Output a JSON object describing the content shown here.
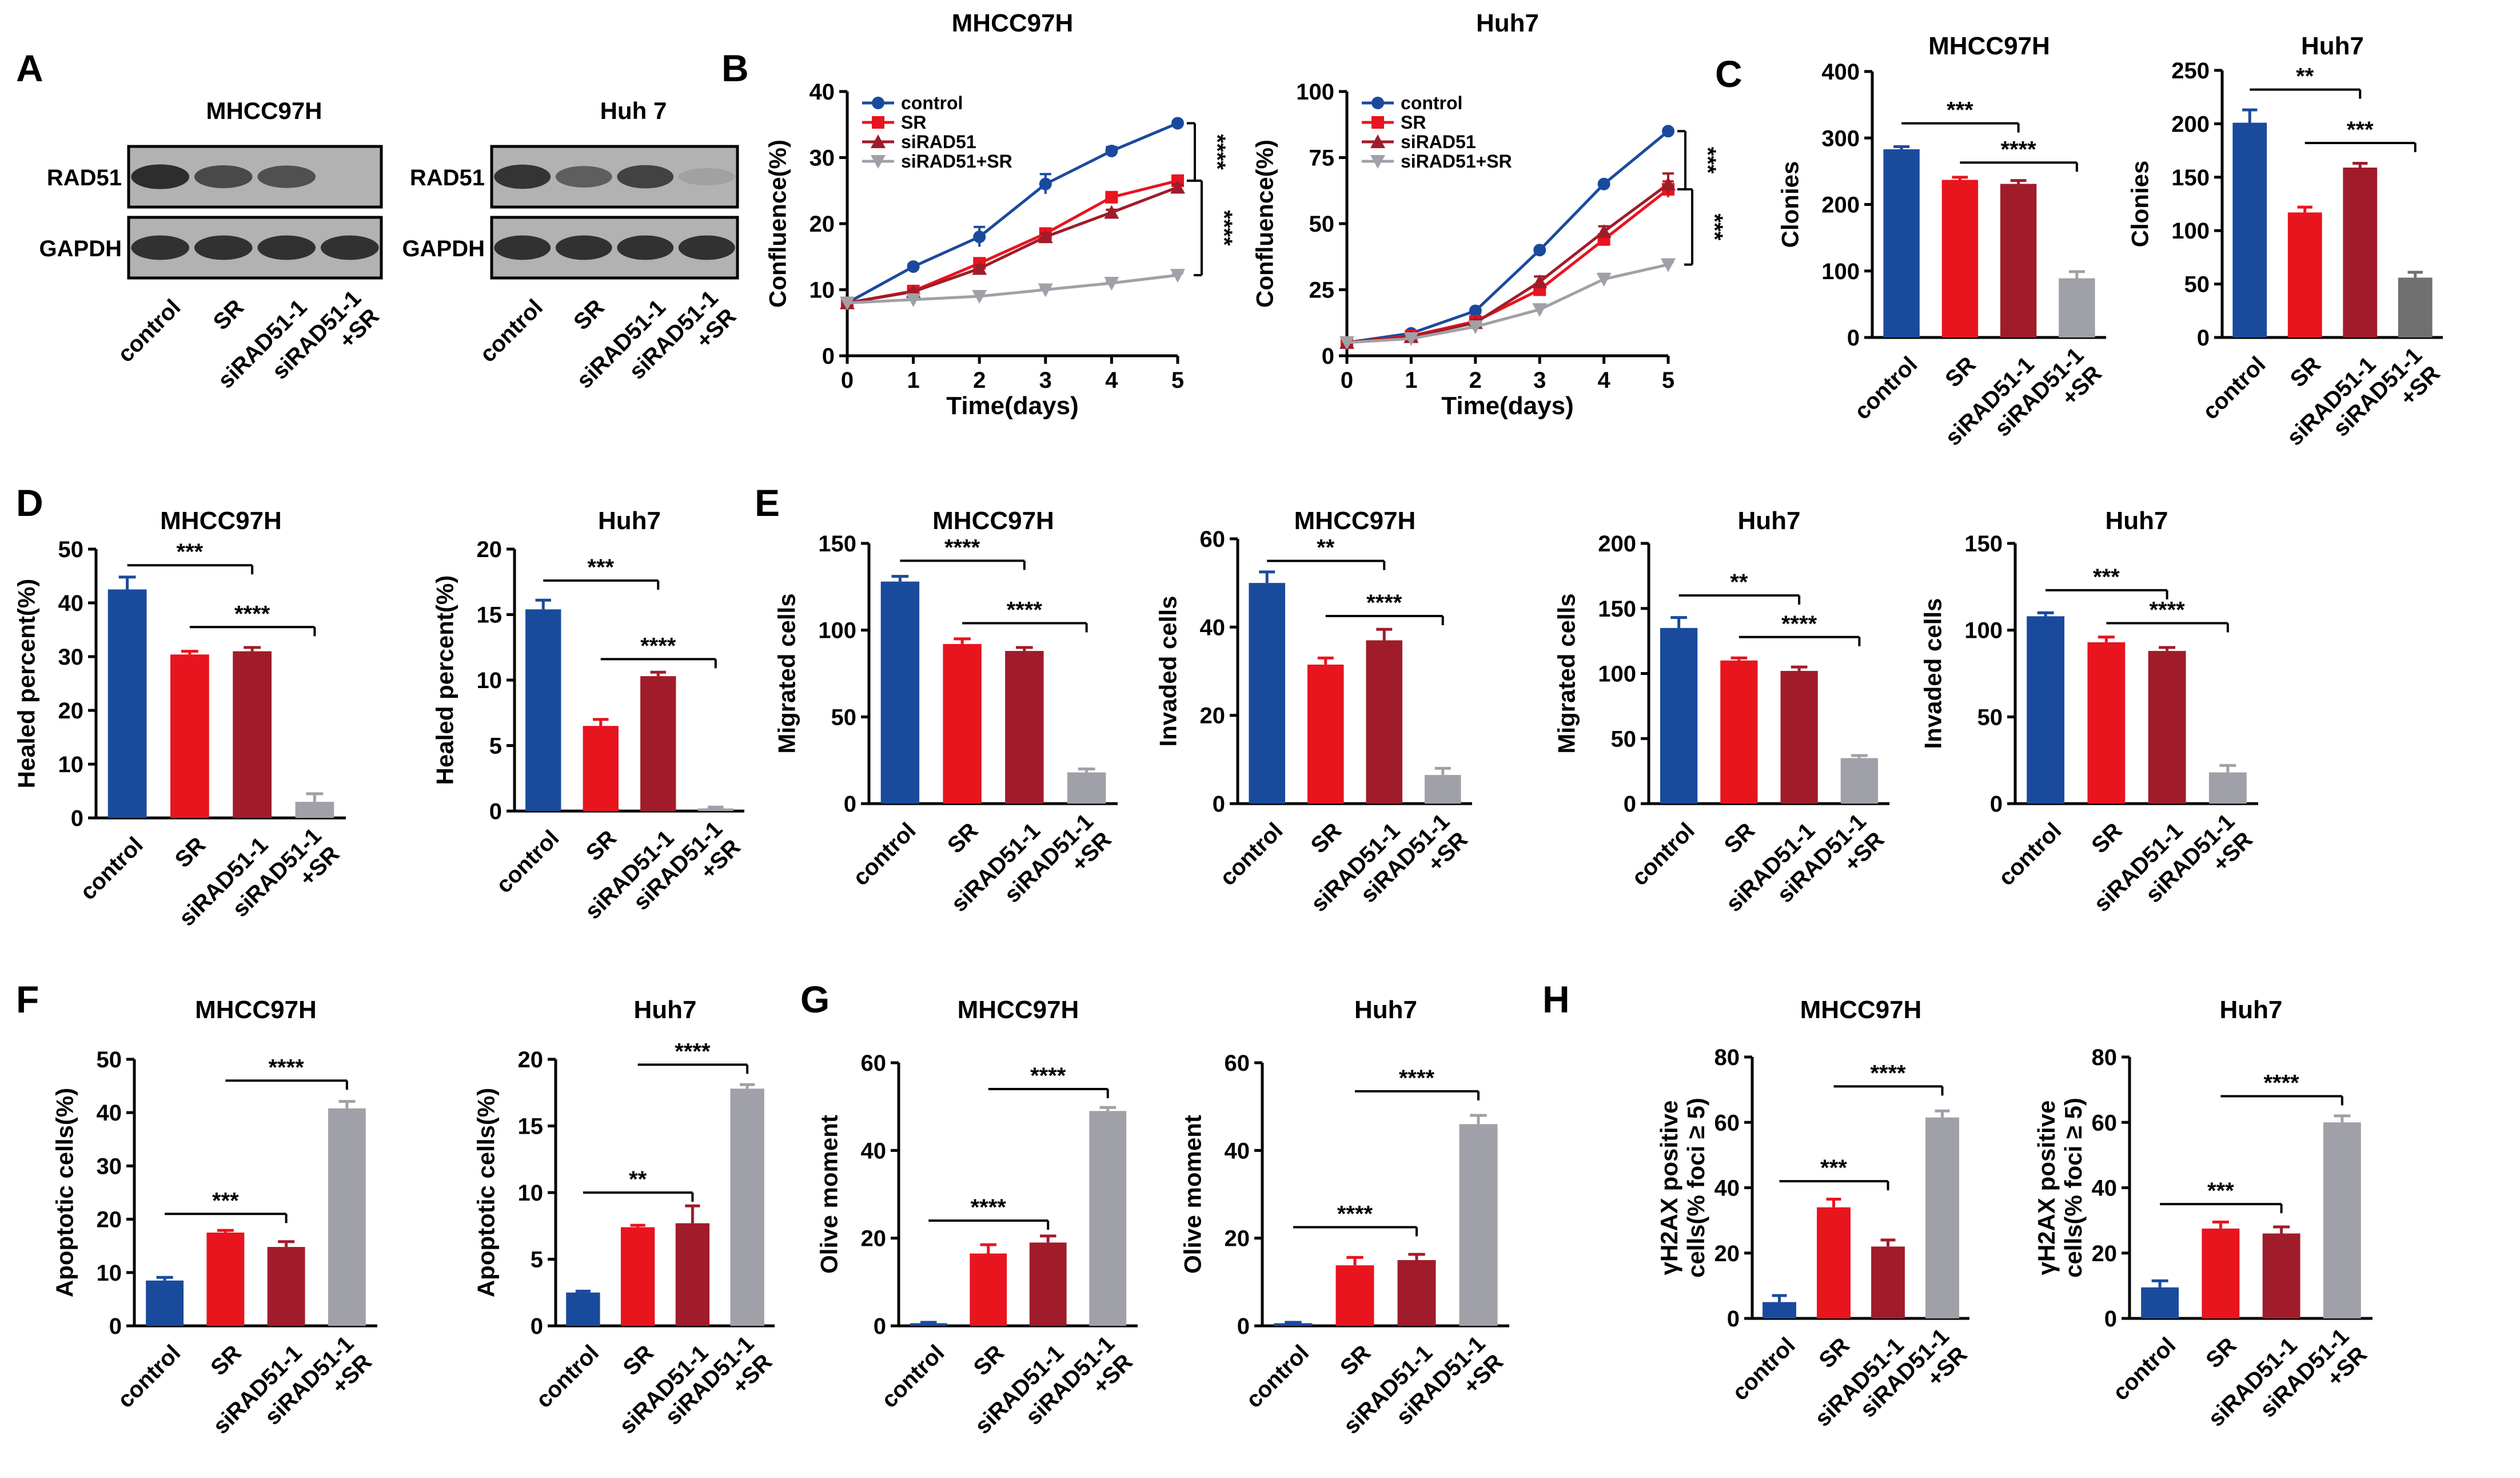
{
  "figure": {
    "panel_letters": [
      "A",
      "B",
      "C",
      "D",
      "E",
      "F",
      "G",
      "H"
    ],
    "colors": {
      "control": "#1a4a9c",
      "SR": "#e8141e",
      "siRAD51": "#a01c2a",
      "combo": "#a0a0a8",
      "comboDark": "#707070",
      "axis": "#000000",
      "blotBg": "#b2b2b2",
      "band": "#262626"
    },
    "western": {
      "blots": [
        {
          "title": "MHCC97H",
          "rows": [
            {
              "label": "RAD51",
              "intensity": [
                0.95,
                0.75,
                0.7,
                0.0
              ]
            },
            {
              "label": "GAPDH",
              "intensity": [
                0.92,
                0.92,
                0.92,
                0.92
              ]
            }
          ]
        },
        {
          "title": "Huh 7",
          "rows": [
            {
              "label": "RAD51",
              "intensity": [
                0.9,
                0.6,
                0.8,
                0.12
              ]
            },
            {
              "label": "GAPDH",
              "intensity": [
                0.92,
                0.92,
                0.92,
                0.92
              ]
            }
          ]
        }
      ],
      "lane_labels": [
        "control",
        "SR",
        "siRAD51-1",
        "siRAD51-1\n+SR"
      ]
    }
  },
  "chart_data": [
    {
      "id": "B1",
      "type": "line",
      "title": "MHCC97H",
      "xlabel": "Time(days)",
      "ylabel": "Confluence(%)",
      "xlim": [
        0,
        5
      ],
      "ylim": [
        0,
        40
      ],
      "xticks": [
        0,
        1,
        2,
        3,
        4,
        5
      ],
      "yticks": [
        0,
        10,
        20,
        30,
        40
      ],
      "series": [
        {
          "name": "control",
          "color": "#1a4a9c",
          "marker": "circle",
          "x": [
            0,
            1,
            2,
            3,
            4,
            5
          ],
          "y": [
            8,
            13.5,
            18,
            26,
            31,
            35.2
          ],
          "err": [
            0,
            0.4,
            1.5,
            1.5,
            0.6,
            0.3
          ]
        },
        {
          "name": "SR",
          "color": "#e8141e",
          "marker": "square",
          "x": [
            0,
            1,
            2,
            3,
            4,
            5
          ],
          "y": [
            8,
            9.8,
            14,
            18.5,
            24,
            26.5
          ],
          "err": [
            0,
            0.3,
            0.5,
            0.5,
            0.4,
            0.6
          ]
        },
        {
          "name": "siRAD51",
          "color": "#a01c2a",
          "marker": "triangle",
          "x": [
            0,
            1,
            2,
            3,
            4,
            5
          ],
          "y": [
            8,
            9.7,
            13.2,
            18,
            21.7,
            25.5
          ],
          "err": [
            0,
            0.3,
            0.5,
            0.5,
            0.4,
            0.4
          ]
        },
        {
          "name": "siRAD51+SR",
          "color": "#a0a0a8",
          "marker": "triangle-down",
          "x": [
            0,
            1,
            2,
            3,
            4,
            5
          ],
          "y": [
            8,
            8.5,
            9,
            10,
            11,
            12.2
          ],
          "err": [
            0,
            0.3,
            0.6,
            0.3,
            0.3,
            0.3
          ]
        }
      ],
      "significance": [
        {
          "label": "****",
          "from": "control",
          "to": "SR"
        },
        {
          "label": "****",
          "from": "SR",
          "to": "siRAD51+SR"
        }
      ]
    },
    {
      "id": "B2",
      "type": "line",
      "title": "Huh7",
      "xlabel": "Time(days)",
      "ylabel": "Confluence(%)",
      "xlim": [
        0,
        5
      ],
      "ylim": [
        0,
        100
      ],
      "xticks": [
        0,
        1,
        2,
        3,
        4,
        5
      ],
      "yticks": [
        0,
        25,
        50,
        75,
        100
      ],
      "series": [
        {
          "name": "control",
          "color": "#1a4a9c",
          "marker": "circle",
          "x": [
            0,
            1,
            2,
            3,
            4,
            5
          ],
          "y": [
            5,
            8.5,
            17,
            40,
            65,
            85
          ],
          "err": [
            0,
            0.5,
            0.5,
            0.6,
            0.6,
            0.6
          ]
        },
        {
          "name": "SR",
          "color": "#e8141e",
          "marker": "square",
          "x": [
            0,
            1,
            2,
            3,
            4,
            5
          ],
          "y": [
            5,
            7.5,
            13,
            25,
            44,
            63
          ],
          "err": [
            0,
            0.5,
            1,
            2,
            2,
            3
          ]
        },
        {
          "name": "siRAD51",
          "color": "#a01c2a",
          "marker": "triangle",
          "x": [
            0,
            1,
            2,
            3,
            4,
            5
          ],
          "y": [
            5,
            7.2,
            12.5,
            28,
            47,
            65
          ],
          "err": [
            0,
            0.5,
            1,
            2,
            2,
            4
          ]
        },
        {
          "name": "siRAD51+SR",
          "color": "#a0a0a8",
          "marker": "triangle-down",
          "x": [
            0,
            1,
            2,
            3,
            4,
            5
          ],
          "y": [
            5,
            6.5,
            11,
            17.5,
            29,
            34.5
          ],
          "err": [
            0,
            0.5,
            1,
            1.5,
            2,
            1
          ]
        }
      ],
      "significance": [
        {
          "label": "***",
          "from": "control",
          "to": "SR"
        },
        {
          "label": "***",
          "from": "SR",
          "to": "siRAD51+SR"
        }
      ]
    },
    {
      "id": "C1",
      "type": "bar",
      "title": "MHCC97H",
      "ylabel": "Clonies",
      "ylim": [
        0,
        400
      ],
      "yticks": [
        0,
        100,
        200,
        300,
        400
      ],
      "categories": [
        "control",
        "SR",
        "siRAD51-1",
        "siRAD51-1\n+SR"
      ],
      "values": [
        283,
        237,
        231,
        89
      ],
      "errors": [
        4,
        4,
        5,
        10
      ],
      "colors": [
        "#1a4a9c",
        "#e8141e",
        "#a01c2a",
        "#a0a0a8"
      ],
      "significance": [
        {
          "label": "***",
          "from": 0,
          "to": 2,
          "y": 322
        },
        {
          "label": "****",
          "from": 1,
          "to": 3,
          "y": 263
        }
      ]
    },
    {
      "id": "C2",
      "type": "bar",
      "title": "Huh7",
      "ylabel": "Clonies",
      "ylim": [
        0,
        250
      ],
      "yticks": [
        0,
        50,
        100,
        150,
        200,
        250
      ],
      "categories": [
        "control",
        "SR",
        "siRAD51-1",
        "siRAD51-1\n+SR"
      ],
      "values": [
        201,
        117,
        159,
        56
      ],
      "errors": [
        12,
        5,
        4,
        5
      ],
      "colors": [
        "#1a4a9c",
        "#e8141e",
        "#a01c2a",
        "#707070"
      ],
      "significance": [
        {
          "label": "**",
          "from": 0,
          "to": 2,
          "y": 232
        },
        {
          "label": "***",
          "from": 1,
          "to": 3,
          "y": 182
        }
      ]
    },
    {
      "id": "D1",
      "type": "bar",
      "title": "MHCC97H",
      "ylabel": "Healed percent(%)",
      "ylim": [
        0,
        50
      ],
      "yticks": [
        0,
        10,
        20,
        30,
        40,
        50
      ],
      "categories": [
        "control",
        "SR",
        "siRAD51-1",
        "siRAD51-1\n+SR"
      ],
      "values": [
        42.5,
        30.4,
        31,
        3
      ],
      "errors": [
        2.3,
        0.6,
        0.7,
        1.5
      ],
      "colors": [
        "#1a4a9c",
        "#e8141e",
        "#a01c2a",
        "#a0a0a8"
      ],
      "significance": [
        {
          "label": "***",
          "from": 0,
          "to": 2,
          "y": 47
        },
        {
          "label": "****",
          "from": 1,
          "to": 3,
          "y": 35.5
        }
      ]
    },
    {
      "id": "D2",
      "type": "bar",
      "title": "Huh7",
      "ylabel": "Healed percent(%)",
      "ylim": [
        0,
        20
      ],
      "yticks": [
        0,
        5,
        10,
        15,
        20
      ],
      "categories": [
        "control",
        "SR",
        "siRAD51-1",
        "siRAD51-1\n+SR"
      ],
      "values": [
        15.4,
        6.5,
        10.3,
        0.2
      ],
      "errors": [
        0.7,
        0.5,
        0.3,
        0.1
      ],
      "colors": [
        "#1a4a9c",
        "#e8141e",
        "#a01c2a",
        "#a0a0a8"
      ],
      "significance": [
        {
          "label": "***",
          "from": 0,
          "to": 2,
          "y": 17.6
        },
        {
          "label": "****",
          "from": 1,
          "to": 3,
          "y": 11.6
        }
      ]
    },
    {
      "id": "E1",
      "type": "bar",
      "title": "MHCC97H",
      "ylabel": "Migrated cells",
      "ylim": [
        0,
        150
      ],
      "yticks": [
        0,
        50,
        100,
        150
      ],
      "categories": [
        "control",
        "SR",
        "siRAD51-1",
        "siRAD51-1\n+SR"
      ],
      "values": [
        128,
        92,
        88,
        18
      ],
      "errors": [
        3,
        3,
        2,
        2
      ],
      "colors": [
        "#1a4a9c",
        "#e8141e",
        "#a01c2a",
        "#a0a0a8"
      ],
      "significance": [
        {
          "label": "****",
          "from": 0,
          "to": 2,
          "y": 140
        },
        {
          "label": "****",
          "from": 1,
          "to": 3,
          "y": 104
        }
      ]
    },
    {
      "id": "E2",
      "type": "bar",
      "title": "MHCC97H",
      "ylabel": "Invaded cells",
      "ylim": [
        0,
        60
      ],
      "yticks": [
        0,
        20,
        40,
        60
      ],
      "categories": [
        "control",
        "SR",
        "siRAD51-1",
        "siRAD51-1\n+SR"
      ],
      "values": [
        50,
        31.5,
        37,
        6.5
      ],
      "errors": [
        2.5,
        1.5,
        2.5,
        1.5
      ],
      "colors": [
        "#1a4a9c",
        "#e8141e",
        "#a01c2a",
        "#a0a0a8"
      ],
      "significance": [
        {
          "label": "**",
          "from": 0,
          "to": 2,
          "y": 55
        },
        {
          "label": "****",
          "from": 1,
          "to": 3,
          "y": 42.5
        }
      ]
    },
    {
      "id": "E3",
      "type": "bar",
      "title": "Huh7",
      "ylabel": "Migrated cells",
      "ylim": [
        0,
        200
      ],
      "yticks": [
        0,
        50,
        100,
        150,
        200
      ],
      "categories": [
        "control",
        "SR",
        "siRAD51-1",
        "siRAD51-1\n+SR"
      ],
      "values": [
        135,
        110,
        102,
        35
      ],
      "errors": [
        8,
        2,
        3,
        2
      ],
      "colors": [
        "#1a4a9c",
        "#e8141e",
        "#a01c2a",
        "#a0a0a8"
      ],
      "significance": [
        {
          "label": "**",
          "from": 0,
          "to": 2,
          "y": 160
        },
        {
          "label": "****",
          "from": 1,
          "to": 3,
          "y": 128
        }
      ]
    },
    {
      "id": "E4",
      "type": "bar",
      "title": "Huh7",
      "ylabel": "Invaded cells",
      "ylim": [
        0,
        150
      ],
      "yticks": [
        0,
        50,
        100,
        150
      ],
      "categories": [
        "control",
        "SR",
        "siRAD51-1",
        "siRAD51-1\n+SR"
      ],
      "values": [
        108,
        93,
        88,
        18
      ],
      "errors": [
        2,
        3,
        2,
        4
      ],
      "colors": [
        "#1a4a9c",
        "#e8141e",
        "#a01c2a",
        "#a0a0a8"
      ],
      "significance": [
        {
          "label": "***",
          "from": 0,
          "to": 2,
          "y": 123
        },
        {
          "label": "****",
          "from": 1,
          "to": 3,
          "y": 104
        }
      ]
    },
    {
      "id": "F1",
      "type": "bar",
      "title": "MHCC97H",
      "ylabel": "Apoptotic cells(%)",
      "ylim": [
        0,
        50
      ],
      "yticks": [
        0,
        10,
        20,
        30,
        40,
        50
      ],
      "categories": [
        "control",
        "SR",
        "siRAD51-1",
        "siRAD51-1\n+SR"
      ],
      "values": [
        8.5,
        17.5,
        14.8,
        40.8
      ],
      "errors": [
        0.6,
        0.4,
        1,
        1.3
      ],
      "colors": [
        "#1a4a9c",
        "#e8141e",
        "#a01c2a",
        "#a0a0a8"
      ],
      "significance": [
        {
          "label": "***",
          "from": 0,
          "to": 2,
          "y": 21
        },
        {
          "label": "****",
          "from": 1,
          "to": 3,
          "y": 46
        }
      ]
    },
    {
      "id": "F2",
      "type": "bar",
      "title": "Huh7",
      "ylabel": "Apoptotic cells(%)",
      "ylim": [
        0,
        20
      ],
      "yticks": [
        0,
        5,
        10,
        15,
        20
      ],
      "categories": [
        "control",
        "SR",
        "siRAD51-1",
        "siRAD51-1\n+SR"
      ],
      "values": [
        2.5,
        7.4,
        7.7,
        17.8
      ],
      "errors": [
        0.1,
        0.15,
        1.3,
        0.3
      ],
      "colors": [
        "#1a4a9c",
        "#e8141e",
        "#a01c2a",
        "#a0a0a8"
      ],
      "significance": [
        {
          "label": "**",
          "from": 0,
          "to": 2,
          "y": 10
        },
        {
          "label": "****",
          "from": 1,
          "to": 3,
          "y": 19.6
        }
      ]
    },
    {
      "id": "G1",
      "type": "bar",
      "title": "MHCC97H",
      "ylabel": "Olive moment",
      "ylim": [
        0,
        60
      ],
      "yticks": [
        0,
        20,
        40,
        60
      ],
      "categories": [
        "control",
        "SR",
        "siRAD51-1",
        "siRAD51-1\n+SR"
      ],
      "values": [
        0.6,
        16.5,
        19,
        49
      ],
      "errors": [
        0.2,
        2,
        1.5,
        0.8
      ],
      "colors": [
        "#1a4a9c",
        "#e8141e",
        "#a01c2a",
        "#a0a0a8"
      ],
      "significance": [
        {
          "label": "****",
          "from": 0,
          "to": 2,
          "y": 24
        },
        {
          "label": "****",
          "from": 1,
          "to": 3,
          "y": 54
        }
      ]
    },
    {
      "id": "G2",
      "type": "bar",
      "title": "Huh7",
      "ylabel": "Olive moment",
      "ylim": [
        0,
        60
      ],
      "yticks": [
        0,
        20,
        40,
        60
      ],
      "categories": [
        "control",
        "SR",
        "siRAD51-1",
        "siRAD51-1\n+SR"
      ],
      "values": [
        0.6,
        13.8,
        15,
        46
      ],
      "errors": [
        0.2,
        1.8,
        1.3,
        2
      ],
      "colors": [
        "#1a4a9c",
        "#e8141e",
        "#a01c2a",
        "#a0a0a8"
      ],
      "significance": [
        {
          "label": "****",
          "from": 0,
          "to": 2,
          "y": 22.5
        },
        {
          "label": "****",
          "from": 1,
          "to": 3,
          "y": 53.5
        }
      ]
    },
    {
      "id": "H1",
      "type": "bar",
      "title": "MHCC97H",
      "ylabel": "γH2AX positive\ncells(% foci ≥ 5)",
      "ylim": [
        0,
        80
      ],
      "yticks": [
        0,
        20,
        40,
        60,
        80
      ],
      "categories": [
        "control",
        "SR",
        "siRAD51-1",
        "siRAD51-1\n+SR"
      ],
      "values": [
        5,
        34,
        22,
        61.5
      ],
      "errors": [
        2,
        2.5,
        2,
        2
      ],
      "colors": [
        "#1a4a9c",
        "#e8141e",
        "#a01c2a",
        "#a0a0a8"
      ],
      "significance": [
        {
          "label": "***",
          "from": 0,
          "to": 2,
          "y": 42
        },
        {
          "label": "****",
          "from": 1,
          "to": 3,
          "y": 71
        }
      ]
    },
    {
      "id": "H2",
      "type": "bar",
      "title": "Huh7",
      "ylabel": "γH2AX positive\ncells(% foci ≥ 5)",
      "ylim": [
        0,
        80
      ],
      "yticks": [
        0,
        20,
        40,
        60,
        80
      ],
      "categories": [
        "control",
        "SR",
        "siRAD51-1",
        "siRAD51-1\n+SR"
      ],
      "values": [
        9.5,
        27.5,
        26,
        60
      ],
      "errors": [
        2,
        2,
        2,
        2
      ],
      "colors": [
        "#1a4a9c",
        "#e8141e",
        "#a01c2a",
        "#a0a0a8"
      ],
      "significance": [
        {
          "label": "***",
          "from": 0,
          "to": 2,
          "y": 35
        },
        {
          "label": "****",
          "from": 1,
          "to": 3,
          "y": 68
        }
      ]
    }
  ]
}
